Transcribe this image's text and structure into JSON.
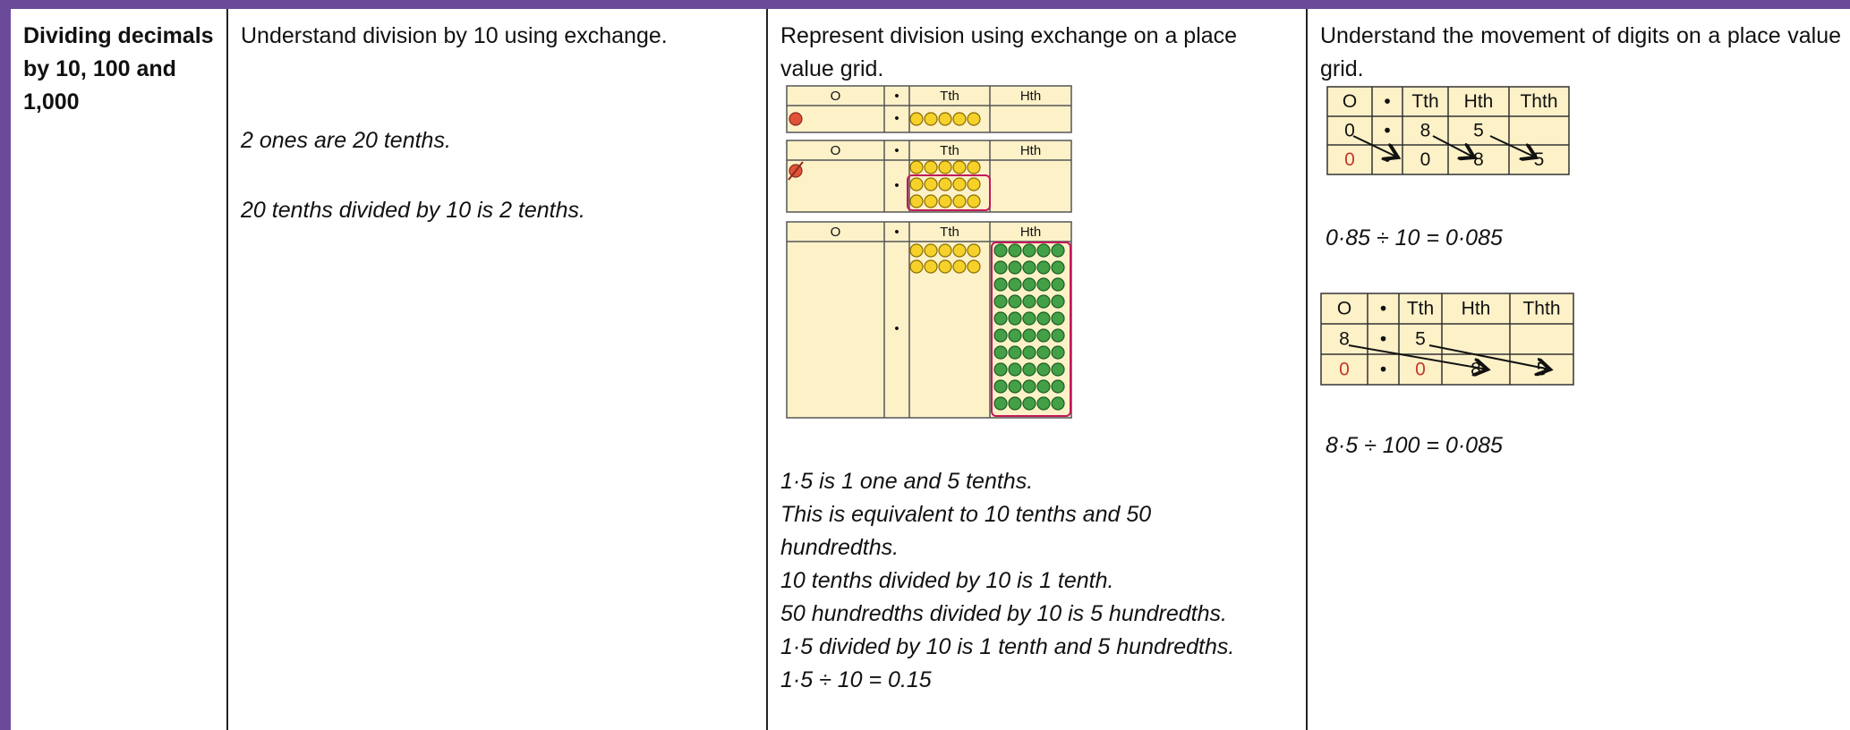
{
  "row": {
    "topic": "Dividing decimals by 10, 100 and 1,000",
    "col1": {
      "heading": "Understand division by 10 using exchange.",
      "lines": [
        "2 ones are 20 tenths.",
        "20 tenths divided by 10 is 2 tenths."
      ]
    },
    "col2": {
      "heading": "Represent division using exchange on a place value grid.",
      "grid_headers": [
        "O",
        "•",
        "Tth",
        "Hth"
      ],
      "lines": [
        "1·5 is 1 one and 5 tenths.",
        "This is equivalent to 10 tenths and 50 hundredths.",
        "10 tenths divided by 10 is 1 tenth.",
        "50 hundredths divided by 10 is 5 hundredths.",
        "1·5 divided by 10 is 1 tenth and 5 hundredths.",
        "1·5 ÷ 10 = 0.15"
      ]
    },
    "col3": {
      "heading": "Understand the movement of digits on a place value grid.",
      "grids": [
        {
          "headers": [
            "O",
            "•",
            "Tth",
            "Hth",
            "Thth"
          ],
          "rows": [
            [
              "0",
              "•",
              "8",
              "5"
            ],
            [
              "0",
              "•",
              "0",
              "8",
              "5"
            ]
          ],
          "equation": "0·85 ÷ 10 = 0·085"
        },
        {
          "headers": [
            "O",
            "•",
            "Tth",
            "Hth",
            "Thth"
          ],
          "rows": [
            [
              "8",
              "•",
              "5"
            ],
            [
              "0",
              "•",
              "0",
              "8",
              "5"
            ]
          ],
          "equation": "8·5 ÷ 100 = 0·085"
        }
      ]
    }
  }
}
